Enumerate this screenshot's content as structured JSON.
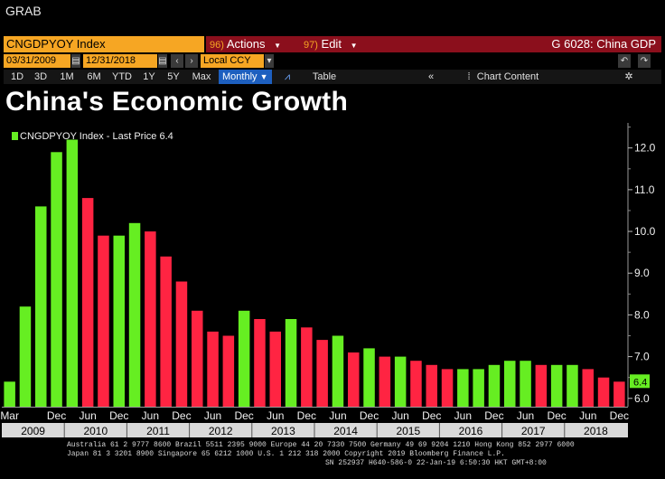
{
  "header": {
    "grab_label": "GRAB"
  },
  "toolbar": {
    "ticker": "CNGDPYOY Index",
    "actions_hot": "96)",
    "actions_label": "Actions",
    "edit_hot": "97)",
    "edit_label": "Edit",
    "graph_title": "G 6028: China GDP"
  },
  "dates": {
    "start": "03/31/2009",
    "end": "12/31/2018",
    "currency": "Local CCY"
  },
  "tabs": {
    "periods": [
      "1D",
      "3D",
      "1M",
      "6M",
      "YTD",
      "1Y",
      "5Y",
      "Max"
    ],
    "frequency": "Monthly",
    "table_label": "Table",
    "chart_content_label": "Chart Content"
  },
  "chart_data": {
    "type": "bar",
    "title": "China's Economic Growth",
    "legend": "CNGDPYOY Index - Last Price 6.4",
    "legend_placement": "top-left",
    "last_price_label": "6.4",
    "ylim": [
      5.8,
      12.6
    ],
    "yticks": [
      6.0,
      7.0,
      8.0,
      9.0,
      10.0,
      11.0,
      12.0
    ],
    "ytick_labels": [
      "6.0",
      "7.0",
      "8.0",
      "9.0",
      "10.0",
      "11.0",
      "12.0"
    ],
    "y_axis_side": "right",
    "categories": [
      "2009Q1",
      "2009Q2",
      "2009Q3",
      "2009Q4",
      "2010Q1",
      "2010Q2",
      "2010Q3",
      "2010Q4",
      "2011Q1",
      "2011Q2",
      "2011Q3",
      "2011Q4",
      "2012Q1",
      "2012Q2",
      "2012Q3",
      "2012Q4",
      "2013Q1",
      "2013Q2",
      "2013Q3",
      "2013Q4",
      "2014Q1",
      "2014Q2",
      "2014Q3",
      "2014Q4",
      "2015Q1",
      "2015Q2",
      "2015Q3",
      "2015Q4",
      "2016Q1",
      "2016Q2",
      "2016Q3",
      "2016Q4",
      "2017Q1",
      "2017Q2",
      "2017Q3",
      "2017Q4",
      "2018Q1",
      "2018Q2",
      "2018Q3",
      "2018Q4"
    ],
    "values": [
      6.4,
      8.2,
      10.6,
      11.9,
      12.2,
      10.8,
      9.9,
      9.9,
      10.2,
      10.0,
      9.4,
      8.8,
      8.1,
      7.6,
      7.5,
      8.1,
      7.9,
      7.6,
      7.9,
      7.7,
      7.4,
      7.5,
      7.1,
      7.2,
      7.0,
      7.0,
      6.9,
      6.8,
      6.7,
      6.7,
      6.7,
      6.8,
      6.9,
      6.9,
      6.8,
      6.8,
      6.8,
      6.7,
      6.5,
      6.4
    ],
    "direction": [
      "up",
      "up",
      "up",
      "up",
      "up",
      "down",
      "down",
      "up",
      "up",
      "down",
      "down",
      "down",
      "down",
      "down",
      "down",
      "up",
      "down",
      "down",
      "up",
      "down",
      "down",
      "up",
      "down",
      "up",
      "down",
      "up",
      "down",
      "down",
      "down",
      "up",
      "up",
      "up",
      "up",
      "up",
      "down",
      "up",
      "up",
      "down",
      "down",
      "down"
    ],
    "colors": {
      "up": "#66ee22",
      "down": "#ff2442"
    },
    "grid": false,
    "x_month_labels": [
      {
        "index": 0,
        "label": "Mar"
      },
      {
        "index": 3,
        "label": "Dec"
      },
      {
        "index": 5,
        "label": "Jun"
      },
      {
        "index": 7,
        "label": "Dec"
      },
      {
        "index": 9,
        "label": "Jun"
      },
      {
        "index": 11,
        "label": "Dec"
      },
      {
        "index": 13,
        "label": "Jun"
      },
      {
        "index": 15,
        "label": "Dec"
      },
      {
        "index": 17,
        "label": "Jun"
      },
      {
        "index": 19,
        "label": "Dec"
      },
      {
        "index": 21,
        "label": "Jun"
      },
      {
        "index": 23,
        "label": "Dec"
      },
      {
        "index": 25,
        "label": "Jun"
      },
      {
        "index": 27,
        "label": "Dec"
      },
      {
        "index": 29,
        "label": "Jun"
      },
      {
        "index": 31,
        "label": "Dec"
      },
      {
        "index": 33,
        "label": "Jun"
      },
      {
        "index": 35,
        "label": "Dec"
      },
      {
        "index": 37,
        "label": "Jun"
      },
      {
        "index": 39,
        "label": "Dec"
      }
    ],
    "x_year_labels": [
      {
        "index": 1.5,
        "label": "2009"
      },
      {
        "index": 5.5,
        "label": "2010"
      },
      {
        "index": 9.5,
        "label": "2011"
      },
      {
        "index": 13.5,
        "label": "2012"
      },
      {
        "index": 17.5,
        "label": "2013"
      },
      {
        "index": 21.5,
        "label": "2014"
      },
      {
        "index": 25.5,
        "label": "2015"
      },
      {
        "index": 29.5,
        "label": "2016"
      },
      {
        "index": 33.5,
        "label": "2017"
      },
      {
        "index": 37.5,
        "label": "2018"
      }
    ]
  },
  "footer": {
    "line1": "Australia 61 2 9777 8600 Brazil 5511 2395 9000 Europe 44 20 7330 7500 Germany 49 69 9204 1210 Hong Kong 852 2977 6000",
    "line2": "Japan 81 3 3201 8900       Singapore 65 6212 1000       U.S. 1 212 318 2000             Copyright 2019 Bloomberg Finance L.P.",
    "line3": "SN 252937 H640-586-0 22-Jan-19  6:50:30 HKT  GMT+8:00"
  }
}
